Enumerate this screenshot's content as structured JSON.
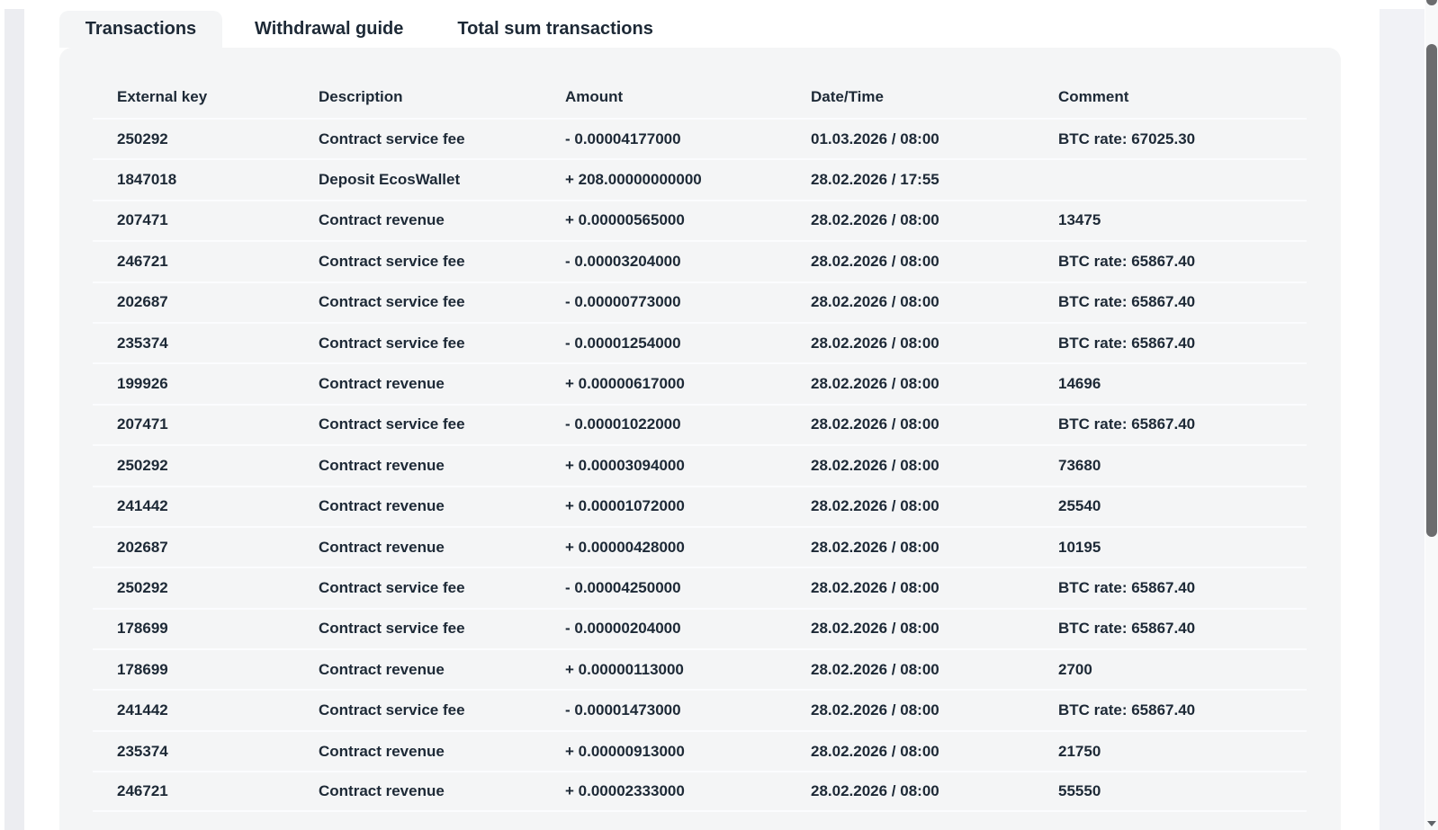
{
  "tabs": [
    {
      "label": "Transactions",
      "active": true
    },
    {
      "label": "Withdrawal guide",
      "active": false
    },
    {
      "label": "Total sum transactions",
      "active": false
    }
  ],
  "table": {
    "columns": [
      "External key",
      "Description",
      "Amount",
      "Date/Time",
      "Comment"
    ],
    "rows": [
      {
        "external_key": "250292",
        "description": "Contract service fee",
        "amount": "- 0.00004177000",
        "datetime": "01.03.2026 / 08:00",
        "comment": "BTC rate: 67025.30"
      },
      {
        "external_key": "1847018",
        "description": "Deposit EcosWallet",
        "amount": "+ 208.00000000000",
        "datetime": "28.02.2026 / 17:55",
        "comment": ""
      },
      {
        "external_key": "207471",
        "description": "Contract revenue",
        "amount": "+ 0.00000565000",
        "datetime": "28.02.2026 / 08:00",
        "comment": "13475"
      },
      {
        "external_key": "246721",
        "description": "Contract service fee",
        "amount": "- 0.00003204000",
        "datetime": "28.02.2026 / 08:00",
        "comment": "BTC rate: 65867.40"
      },
      {
        "external_key": "202687",
        "description": "Contract service fee",
        "amount": "- 0.00000773000",
        "datetime": "28.02.2026 / 08:00",
        "comment": "BTC rate: 65867.40"
      },
      {
        "external_key": "235374",
        "description": "Contract service fee",
        "amount": "- 0.00001254000",
        "datetime": "28.02.2026 / 08:00",
        "comment": "BTC rate: 65867.40"
      },
      {
        "external_key": "199926",
        "description": "Contract revenue",
        "amount": "+ 0.00000617000",
        "datetime": "28.02.2026 / 08:00",
        "comment": "14696"
      },
      {
        "external_key": "207471",
        "description": "Contract service fee",
        "amount": "- 0.00001022000",
        "datetime": "28.02.2026 / 08:00",
        "comment": "BTC rate: 65867.40"
      },
      {
        "external_key": "250292",
        "description": "Contract revenue",
        "amount": "+ 0.00003094000",
        "datetime": "28.02.2026 / 08:00",
        "comment": "73680"
      },
      {
        "external_key": "241442",
        "description": "Contract revenue",
        "amount": "+ 0.00001072000",
        "datetime": "28.02.2026 / 08:00",
        "comment": "25540"
      },
      {
        "external_key": "202687",
        "description": "Contract revenue",
        "amount": "+ 0.00000428000",
        "datetime": "28.02.2026 / 08:00",
        "comment": "10195"
      },
      {
        "external_key": "250292",
        "description": "Contract service fee",
        "amount": "- 0.00004250000",
        "datetime": "28.02.2026 / 08:00",
        "comment": "BTC rate: 65867.40"
      },
      {
        "external_key": "178699",
        "description": "Contract service fee",
        "amount": "- 0.00000204000",
        "datetime": "28.02.2026 / 08:00",
        "comment": "BTC rate: 65867.40"
      },
      {
        "external_key": "178699",
        "description": "Contract revenue",
        "amount": "+ 0.00000113000",
        "datetime": "28.02.2026 / 08:00",
        "comment": "2700"
      },
      {
        "external_key": "241442",
        "description": "Contract service fee",
        "amount": "- 0.00001473000",
        "datetime": "28.02.2026 / 08:00",
        "comment": "BTC rate: 65867.40"
      },
      {
        "external_key": "235374",
        "description": "Contract revenue",
        "amount": "+ 0.00000913000",
        "datetime": "28.02.2026 / 08:00",
        "comment": "21750"
      },
      {
        "external_key": "246721",
        "description": "Contract revenue",
        "amount": "+ 0.00002333000",
        "datetime": "28.02.2026 / 08:00",
        "comment": "55550"
      }
    ]
  },
  "colors": {
    "text": "#1d2936",
    "card_bg": "#f4f5f6",
    "divider": "#fbfcfe",
    "scrollbar_thumb": "#6b6c6e"
  }
}
